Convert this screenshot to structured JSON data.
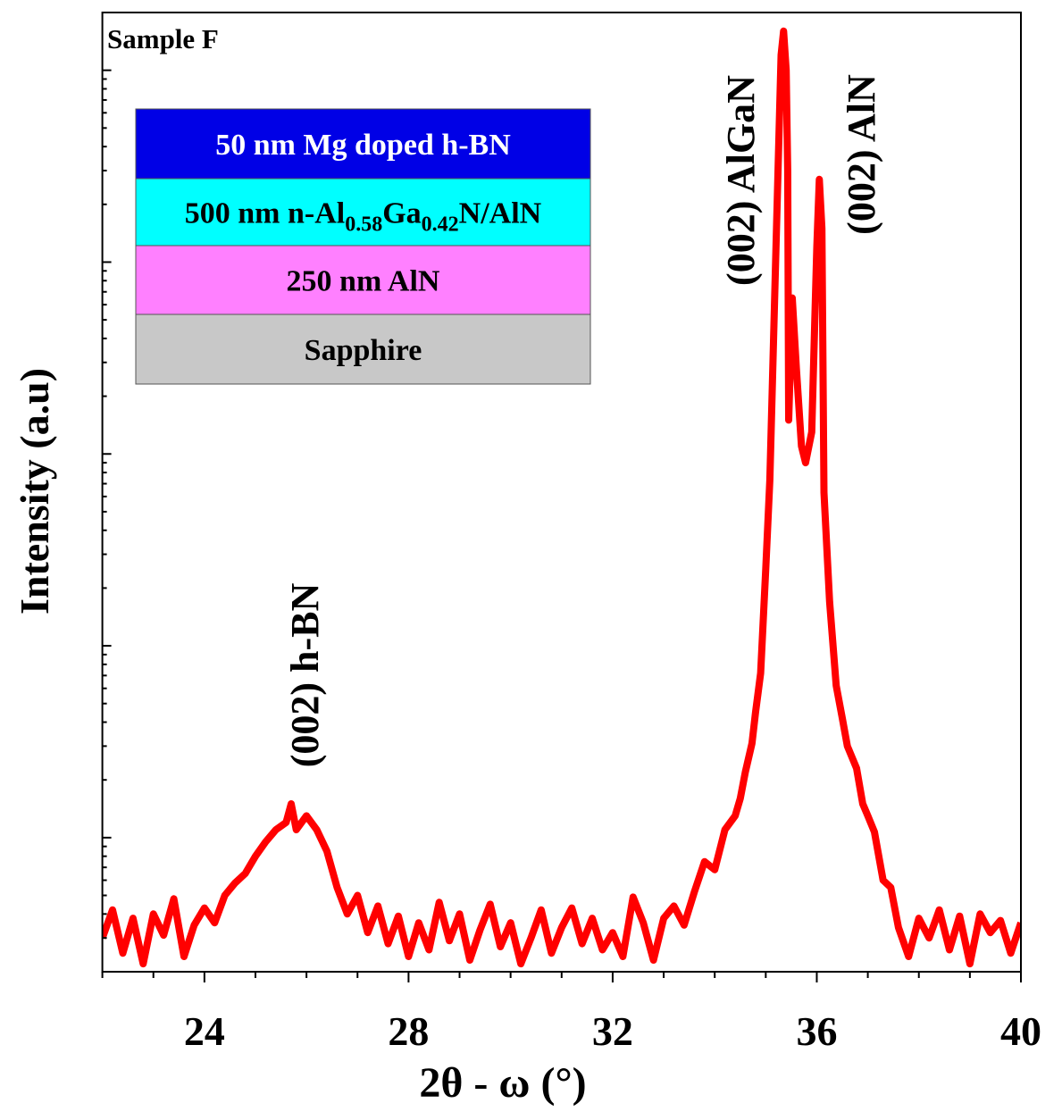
{
  "chart_data": {
    "type": "line",
    "title": "",
    "sample_label": "Sample F",
    "xlabel": "2θ - ω (°)",
    "ylabel": "Intensity (a.u)",
    "xlim": [
      22,
      40
    ],
    "xticks": [
      24,
      28,
      32,
      36,
      40
    ],
    "ylog": true,
    "ylim": [
      2,
      200000
    ],
    "y_tick_labels_shown": false,
    "grid": false,
    "line_color": "#ff0000",
    "annotations": [
      {
        "text": "(002) h-BN",
        "x": 25.8,
        "orientation": "vertical"
      },
      {
        "text": "(002) AlGaN",
        "x": 34.75,
        "orientation": "vertical"
      },
      {
        "text": "(002) AlN",
        "x": 36.85,
        "orientation": "vertical"
      }
    ],
    "layer_stack": [
      {
        "label": "50 nm Mg doped h-BN",
        "color": "#0000e6",
        "text_color": "#ffffff"
      },
      {
        "label_parts": [
          "500 nm n-Al",
          "0.58",
          "Ga",
          "0.42",
          "N/AlN"
        ],
        "color": "#00ffff",
        "text_color": "#000000"
      },
      {
        "label": "250 nm AlN",
        "color": "#ff80ff",
        "text_color": "#000000"
      },
      {
        "label": "Sapphire",
        "color": "#c8c8c8",
        "text_color": "#000000"
      }
    ],
    "series": [
      {
        "x": [
          22.0,
          22.2,
          22.4,
          22.6,
          22.8,
          23.0,
          23.2,
          23.4,
          23.6,
          23.8,
          24.0,
          24.2,
          24.4,
          24.6,
          24.8,
          25.0,
          25.2,
          25.4,
          25.6,
          25.7,
          25.8,
          26.0,
          26.2,
          26.4,
          26.6,
          26.8,
          27.0,
          27.2,
          27.4,
          27.6,
          27.8,
          28.0,
          28.2,
          28.4,
          28.6,
          28.8,
          29.0,
          29.2,
          29.4,
          29.6,
          29.8,
          30.0,
          30.2,
          30.4,
          30.6,
          30.8,
          31.0,
          31.2,
          31.4,
          31.6,
          31.8,
          32.0,
          32.2,
          32.4,
          32.6,
          32.8,
          33.0,
          33.2,
          33.4,
          33.6,
          33.8,
          34.0,
          34.2,
          34.4,
          34.5,
          34.6,
          34.73,
          34.8,
          34.9,
          35.0,
          35.08,
          35.2,
          35.3,
          35.35,
          35.4,
          35.43,
          35.45,
          35.52,
          35.6,
          35.7,
          35.78,
          35.9,
          36.0,
          36.05,
          36.1,
          36.14,
          36.25,
          36.38,
          36.5,
          36.6,
          36.78,
          36.9,
          37.0,
          37.13,
          37.3,
          37.45,
          37.6,
          37.8,
          38.0,
          38.2,
          38.4,
          38.6,
          38.8,
          39.0,
          39.2,
          39.4,
          39.6,
          39.8,
          40.0
        ],
        "y": [
          3.0,
          4.2,
          2.5,
          3.8,
          2.2,
          4.0,
          3.1,
          4.8,
          2.4,
          3.5,
          4.3,
          3.6,
          5.0,
          5.8,
          6.5,
          8.0,
          9.5,
          11,
          12,
          15,
          11,
          13,
          11,
          8.5,
          5.5,
          4.0,
          5.0,
          3.2,
          4.4,
          2.8,
          3.9,
          2.4,
          3.6,
          2.6,
          4.6,
          2.9,
          4.0,
          2.3,
          3.3,
          4.5,
          2.7,
          3.6,
          2.2,
          3.0,
          4.2,
          2.5,
          3.4,
          4.3,
          2.8,
          3.8,
          2.6,
          3.2,
          2.4,
          4.9,
          3.6,
          2.3,
          3.8,
          4.4,
          3.5,
          5.2,
          7.5,
          6.8,
          11,
          13,
          16,
          22,
          31,
          45,
          72,
          250,
          730,
          12000,
          120000,
          160000,
          100000,
          30000,
          1500,
          6500,
          2800,
          1100,
          900,
          1300,
          12000,
          27000,
          15000,
          630,
          170,
          62,
          42,
          30,
          23,
          15,
          13,
          10.7,
          6,
          5.5,
          3.4,
          2.4,
          3.8,
          3.0,
          4.2,
          2.6,
          3.9,
          2.2,
          4.0,
          3.2,
          3.7,
          2.5,
          3.6
        ]
      }
    ]
  }
}
